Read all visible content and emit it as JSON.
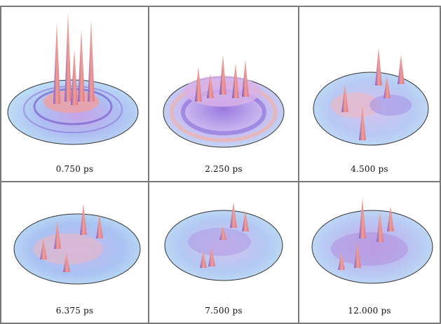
{
  "panels": [
    {
      "label": "0.750 ps",
      "colors": {
        "disk": "#bfe2f7",
        "peak": "#f08a86",
        "shade": "#7a5bd6"
      }
    },
    {
      "label": "2.250 ps",
      "colors": {
        "disk": "#bfe2f7",
        "peak": "#f08a86",
        "shade": "#7a5bd6"
      }
    },
    {
      "label": "4.500 ps",
      "colors": {
        "disk": "#bfe2f7",
        "peak": "#f08a86",
        "shade": "#7a5bd6"
      }
    },
    {
      "label": "6.375 ps",
      "colors": {
        "disk": "#bfe2f7",
        "peak": "#f08a86",
        "shade": "#7a5bd6"
      }
    },
    {
      "label": "7.500 ps",
      "colors": {
        "disk": "#bfe2f7",
        "peak": "#f08a86",
        "shade": "#7a5bd6"
      }
    },
    {
      "label": "12.000 ps",
      "colors": {
        "disk": "#bfe2f7",
        "peak": "#f08a86",
        "shade": "#7a5bd6"
      }
    }
  ]
}
